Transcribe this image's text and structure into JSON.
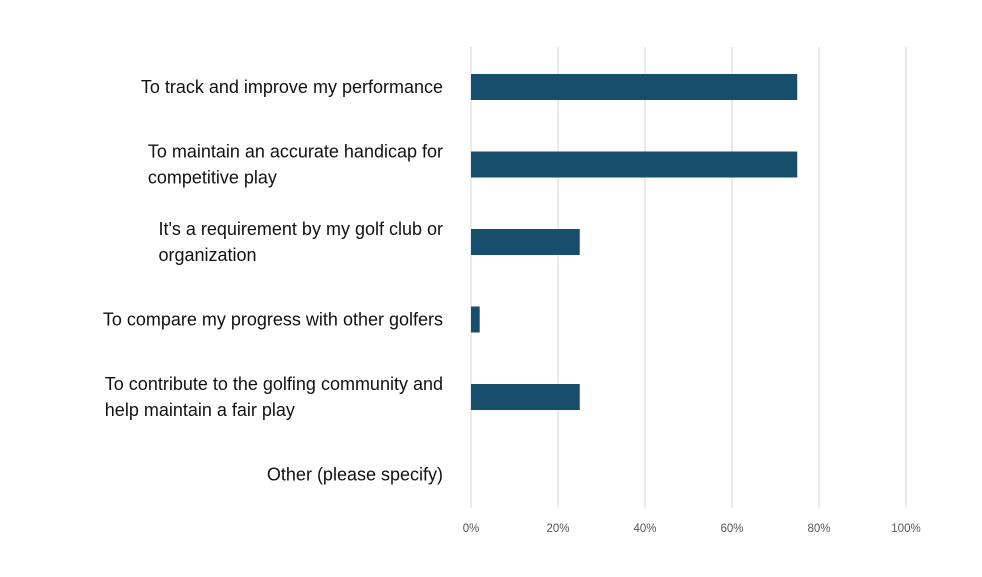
{
  "chart_data": {
    "type": "bar",
    "orientation": "horizontal",
    "title": "",
    "xlabel": "",
    "ylabel": "",
    "categories": [
      [
        "To   track and improve my performance"
      ],
      [
        "To maintain   an accurate handicap for",
        "competitive play"
      ],
      [
        "It's a   requirement by my golf club or",
        "organization"
      ],
      [
        "To compare   my progress with other golfers"
      ],
      [
        "To   contribute to the golfing community and",
        "help maintain a fair play"
      ],
      [
        "Other   (please specify)"
      ]
    ],
    "values": [
      75,
      75,
      25,
      2,
      25,
      0
    ],
    "xlim": [
      0,
      100
    ],
    "xticks": [
      0,
      20,
      40,
      60,
      80,
      100
    ],
    "xtick_labels": [
      "0%",
      "20%",
      "40%",
      "60%",
      "80%",
      "100%"
    ],
    "grid": true,
    "legend": "none",
    "bar_color": "#174e6b",
    "grid_color": "#d6d6d6"
  }
}
